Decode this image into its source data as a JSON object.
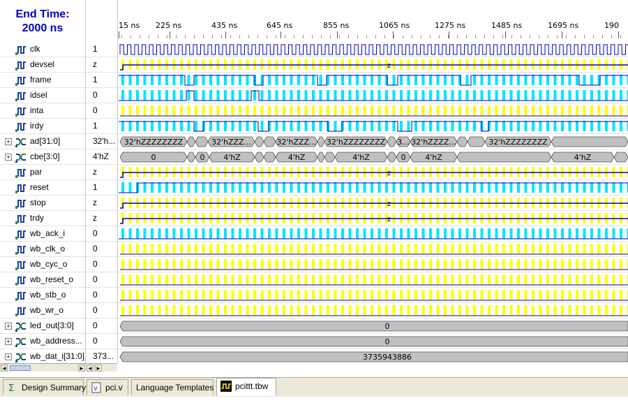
{
  "end_time": {
    "line1": "End Time:",
    "line2": "2000 ns"
  },
  "ruler": {
    "labels": [
      "15 ns",
      "225 ns",
      "435 ns",
      "645 ns",
      "855 ns",
      "1065 ns",
      "1275 ns",
      "1485 ns",
      "1695 ns",
      "190"
    ]
  },
  "signals": [
    {
      "name": "clk",
      "value": "1",
      "kind": "bit",
      "wave": "clock"
    },
    {
      "name": "devsel",
      "value": "z",
      "kind": "bit",
      "wave": "z",
      "ztext": "z"
    },
    {
      "name": "frame",
      "value": "1",
      "kind": "bit",
      "wave": "cyan-pulse"
    },
    {
      "name": "idsel",
      "value": "0",
      "kind": "bit",
      "wave": "cyan-low"
    },
    {
      "name": "inta",
      "value": "0",
      "kind": "bit",
      "wave": "yellow"
    },
    {
      "name": "irdy",
      "value": "1",
      "kind": "bit",
      "wave": "cyan-high"
    },
    {
      "name": "ad[31:0]",
      "value": "32'h...",
      "kind": "bus",
      "wave": "bus",
      "buslabels": [
        "32'hZZZZZZZZ",
        "3...",
        "32'hZZZ...",
        "7",
        "32'hZZZ...",
        "32'hZZZZZZZZ",
        "3...",
        "32'hZZZZ...",
        "32'hZZZZZZZZ"
      ]
    },
    {
      "name": "cbe[3:0]",
      "value": "4'hZ",
      "kind": "bus",
      "wave": "bus",
      "buslabels": [
        "0",
        "0",
        "4'hZ",
        "0",
        "4'hZ",
        "0",
        "4'hZ",
        "0",
        "4'hZ",
        "4'hZ"
      ]
    },
    {
      "name": "par",
      "value": "z",
      "kind": "bit",
      "wave": "z",
      "ztext": "z"
    },
    {
      "name": "reset",
      "value": "1",
      "kind": "bit",
      "wave": "reset"
    },
    {
      "name": "stop",
      "value": "z",
      "kind": "bit",
      "wave": "z",
      "ztext": "z"
    },
    {
      "name": "trdy",
      "value": "z",
      "kind": "bit",
      "wave": "z",
      "ztext": "z"
    },
    {
      "name": "wb_ack_i",
      "value": "0",
      "kind": "bit",
      "wave": "cyan-low"
    },
    {
      "name": "wb_clk_o",
      "value": "0",
      "kind": "bit",
      "wave": "yellow"
    },
    {
      "name": "wb_cyc_o",
      "value": "0",
      "kind": "bit",
      "wave": "yellow"
    },
    {
      "name": "wb_reset_o",
      "value": "0",
      "kind": "bit",
      "wave": "yellow"
    },
    {
      "name": "wb_stb_o",
      "value": "0",
      "kind": "bit",
      "wave": "yellow"
    },
    {
      "name": "wb_wr_o",
      "value": "0",
      "kind": "bit",
      "wave": "yellow"
    },
    {
      "name": "led_out[3:0]",
      "value": "0",
      "kind": "bus",
      "wave": "constbus",
      "const": "0"
    },
    {
      "name": "wb_address...",
      "value": "0",
      "kind": "bus",
      "wave": "constbus",
      "const": "0"
    },
    {
      "name": "wb_dat_i[31:0]",
      "value": "373...",
      "kind": "bus",
      "wave": "constbus",
      "const": "3735943886"
    }
  ],
  "tabs": [
    {
      "label": "Design Summary",
      "icon": "sigma-icon"
    },
    {
      "label": "pci.v",
      "icon": "verilog-file-icon"
    },
    {
      "label": "Language Templates",
      "icon": ""
    },
    {
      "label": "pcittt.tbw",
      "icon": "waveform-icon"
    }
  ],
  "colors": {
    "cyan": "#00e5ff",
    "yellow": "#ffff00",
    "blue": "#0000c8",
    "bus_fill": "#c0c0c0"
  }
}
